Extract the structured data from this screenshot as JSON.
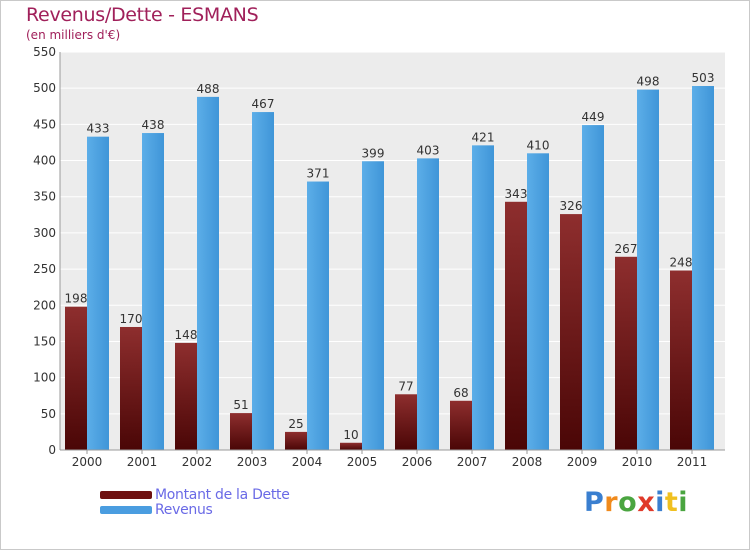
{
  "chart_data": {
    "type": "bar",
    "title": "Revenus/Dette - ESMANS",
    "subtitle": "(en milliers d'€)",
    "categories": [
      "2000",
      "2001",
      "2002",
      "2003",
      "2004",
      "2005",
      "2006",
      "2007",
      "2008",
      "2009",
      "2010",
      "2011"
    ],
    "series": [
      {
        "name": "Montant de la Dette",
        "color": "#7a1a1a",
        "values": [
          198,
          170,
          148,
          51,
          25,
          10,
          77,
          68,
          343,
          326,
          267,
          248
        ]
      },
      {
        "name": "Revenus",
        "color": "#4a9de0",
        "values": [
          433,
          438,
          488,
          467,
          371,
          399,
          403,
          421,
          410,
          449,
          498,
          503
        ]
      }
    ],
    "ylim": [
      0,
      550
    ],
    "yticks": [
      0,
      50,
      100,
      150,
      200,
      250,
      300,
      350,
      400,
      450,
      500,
      550
    ],
    "grid": true,
    "legend_position": "bottom-left"
  },
  "logo": {
    "text": "Proxiti",
    "letter_colors": [
      "#3a7fd0",
      "#f08a1c",
      "#4aa540",
      "#e03a2a",
      "#3a7fd0",
      "#f0c020",
      "#4aa540"
    ]
  }
}
